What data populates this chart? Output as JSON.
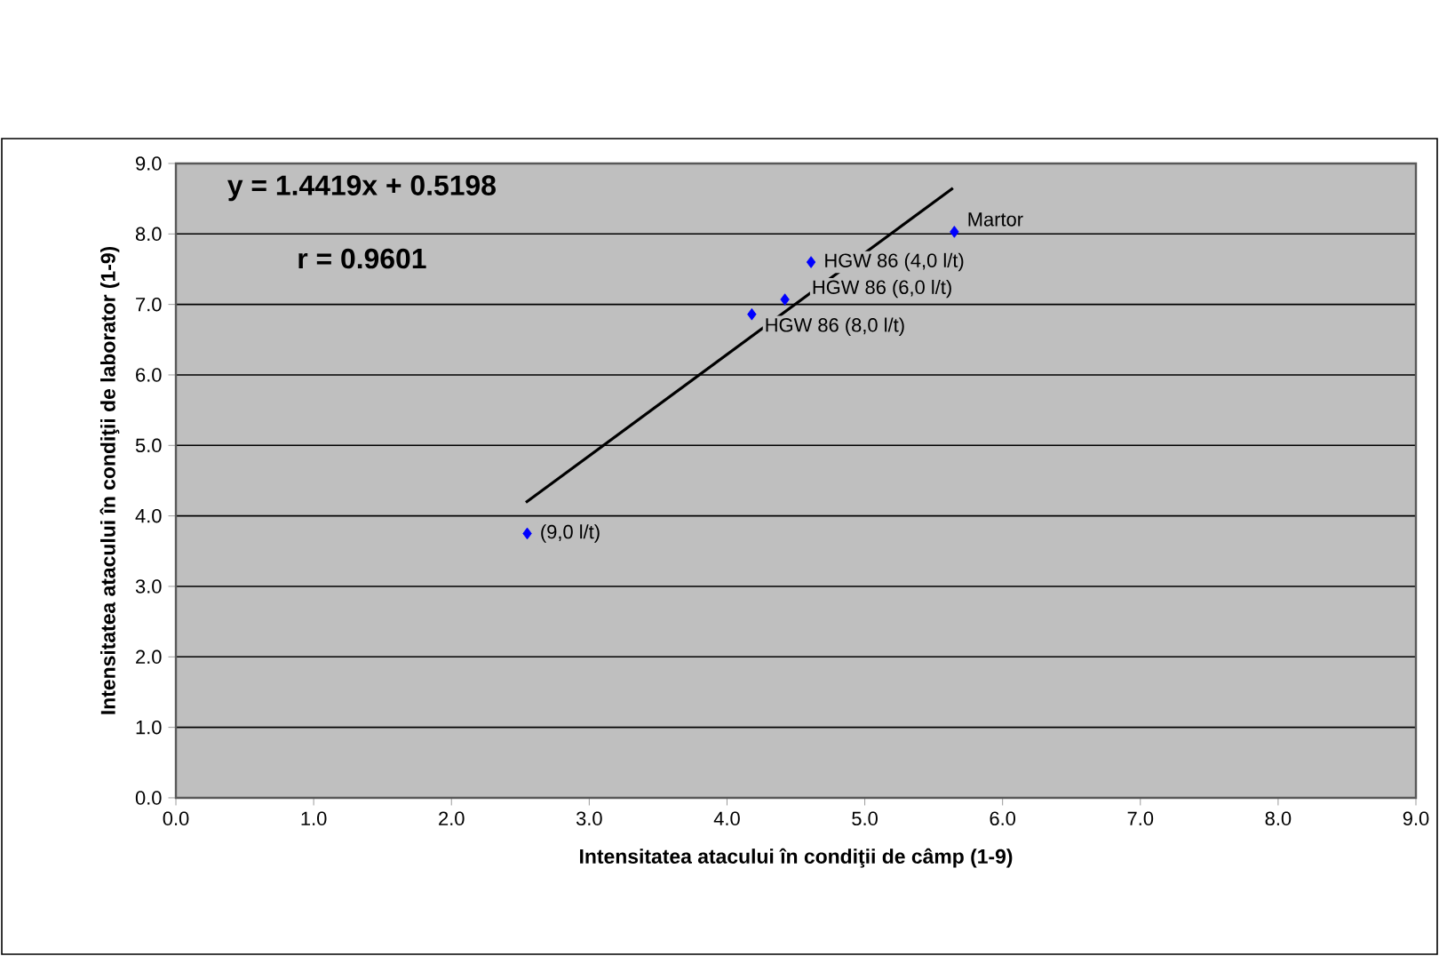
{
  "chart_data": {
    "type": "scatter",
    "xlabel": "Intensitatea atacului în condiţii de câmp (1-9)",
    "ylabel": "Intensitatea atacului în condiţii de laborator (1-9)",
    "series": [
      {
        "color": "#0000ff",
        "marker": "diamond",
        "x": [
          2.55,
          4.18,
          4.42,
          4.61,
          5.65
        ],
        "values": [
          3.75,
          6.86,
          7.07,
          7.6,
          8.03
        ]
      },
      {
        "type": "line",
        "color": "#000000",
        "marker": "none",
        "line_style": "solid",
        "x": [
          2.54,
          5.64
        ],
        "values": [
          4.19,
          8.65
        ]
      }
    ],
    "annotations": [
      "y = 1.4419x + 0.5198",
      "r = 0.9601",
      {
        "text": "(9,0 l/t)",
        "x": 2.55,
        "y": 3.75
      },
      {
        "text": "HGW 86 (8,0 l/t)",
        "x": 4.18,
        "y": 6.86
      },
      {
        "text": "HGW 86 (6,0 l/t)",
        "x": 4.42,
        "y": 7.07
      },
      {
        "text": "HGW 86 (4,0 l/t)",
        "x": 4.61,
        "y": 7.6
      },
      {
        "text": "Martor",
        "x": 5.65,
        "y": 8.03
      }
    ],
    "xlim": [
      0,
      9
    ],
    "ylim": [
      0,
      9
    ],
    "xticks": [
      {
        "value": 0,
        "label": "0.0"
      },
      {
        "value": 1,
        "label": "1.0"
      },
      {
        "value": 2,
        "label": "2.0"
      },
      {
        "value": 3,
        "label": "3.0"
      },
      {
        "value": 4,
        "label": "4.0"
      },
      {
        "value": 5,
        "label": "5.0"
      },
      {
        "value": 6,
        "label": "6.0"
      },
      {
        "value": 7,
        "label": "7.0"
      },
      {
        "value": 8,
        "label": "8.0"
      },
      {
        "value": 9,
        "label": "9.0"
      }
    ],
    "yticks": [
      {
        "value": 0,
        "label": "0.0"
      },
      {
        "value": 1,
        "label": "1.0"
      },
      {
        "value": 2,
        "label": "2.0"
      },
      {
        "value": 3,
        "label": "3.0"
      },
      {
        "value": 4,
        "label": "4.0"
      },
      {
        "value": 5,
        "label": "5.0"
      },
      {
        "value": 6,
        "label": "6.0"
      },
      {
        "value": 7,
        "label": "7.0"
      },
      {
        "value": 8,
        "label": "8.0"
      },
      {
        "value": 9,
        "label": "9.0"
      }
    ],
    "grid": "y"
  }
}
